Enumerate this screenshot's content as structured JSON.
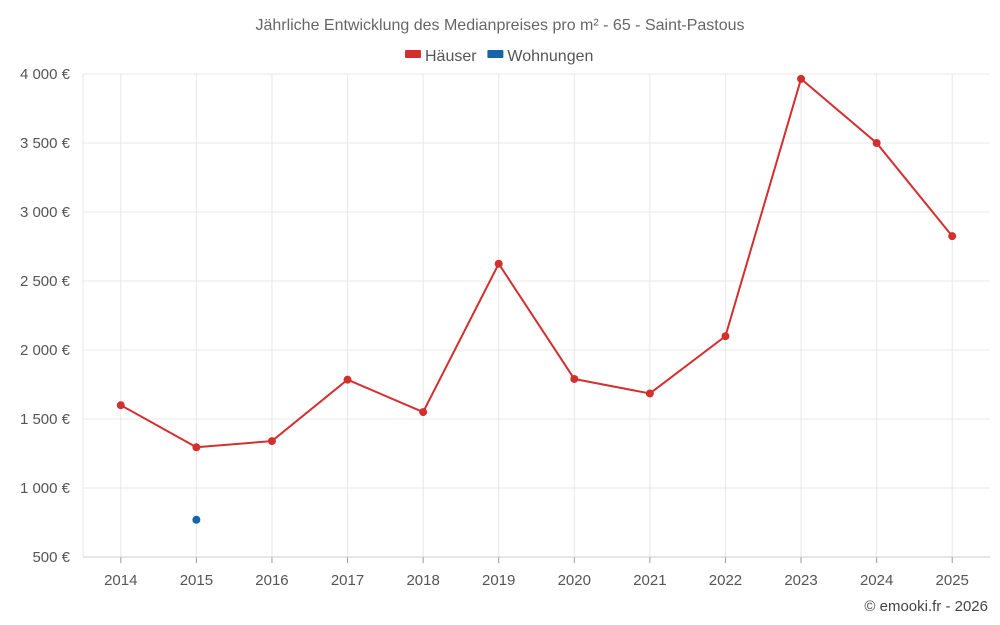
{
  "chart_data": {
    "type": "line",
    "title": "Jährliche Entwicklung des Medianpreises pro m² - 65 - Saint-Pastous",
    "categories": [
      "2014",
      "2015",
      "2016",
      "2017",
      "2018",
      "2019",
      "2020",
      "2021",
      "2022",
      "2023",
      "2024",
      "2025"
    ],
    "series": [
      {
        "name": "Häuser",
        "color": "#d32f2f",
        "values": [
          1600,
          1295,
          1340,
          1785,
          1550,
          2625,
          1790,
          1685,
          2100,
          3965,
          3500,
          2825
        ]
      },
      {
        "name": "Wohnungen",
        "color": "#1565a8",
        "values": [
          null,
          770,
          null,
          null,
          null,
          null,
          null,
          null,
          null,
          null,
          null,
          null
        ]
      }
    ],
    "ylim": [
      500,
      4000
    ],
    "yticks": [
      500,
      1000,
      1500,
      2000,
      2500,
      3000,
      3500,
      4000
    ],
    "ytick_labels": [
      "500 €",
      "1 000 €",
      "1 500 €",
      "2 000 €",
      "2 500 €",
      "3 000 €",
      "3 500 €",
      "4 000 €"
    ],
    "grid": true,
    "legend_position": "top-center"
  },
  "credit": "© emooki.fr - 2026"
}
